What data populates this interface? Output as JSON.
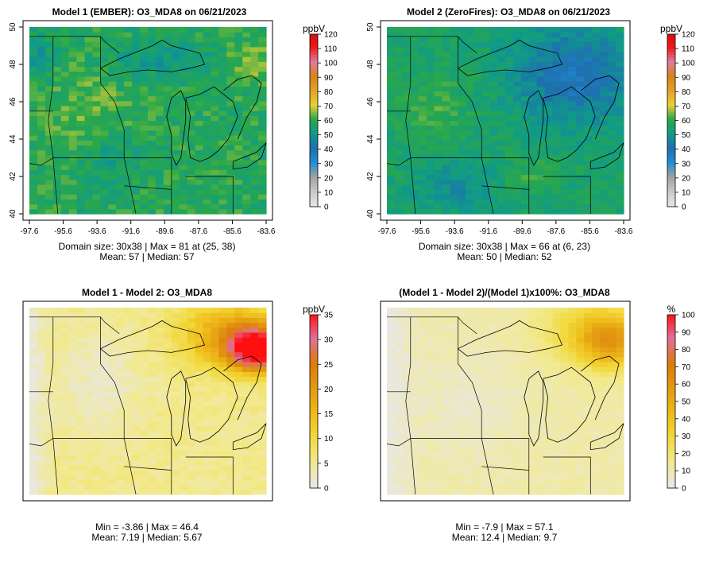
{
  "panels": [
    {
      "id": "p1",
      "title": "Model 1 (EMBER): O3_MDA8 on 06/21/2023",
      "stats_line1": "Domain size: 30x38 | Max = 81 at (25, 38)",
      "stats_line2": "Mean: 57 |  Median: 57",
      "colorbar_unit": "ppbV",
      "colorbar_ticks": [
        "0",
        "10",
        "20",
        "30",
        "40",
        "50",
        "60",
        "70",
        "80",
        "90",
        "100",
        "110",
        "120"
      ],
      "colorbar_range": [
        0,
        120
      ],
      "x_ticks": [
        "-97.6",
        "-95.6",
        "-93.6",
        "-91.6",
        "-89.6",
        "-87.6",
        "-85.6",
        "-83.6"
      ],
      "y_ticks": [
        "40",
        "42",
        "44",
        "46",
        "48",
        "50"
      ],
      "show_axes": true,
      "field": "model1"
    },
    {
      "id": "p2",
      "title": "Model 2 (ZeroFires): O3_MDA8 on 06/21/2023",
      "stats_line1": "Domain size: 30x38 | Max = 66 at (6, 23)",
      "stats_line2": "Mean: 50 |  Median: 52",
      "colorbar_unit": "ppbV",
      "colorbar_ticks": [
        "0",
        "10",
        "20",
        "30",
        "40",
        "50",
        "60",
        "70",
        "80",
        "90",
        "100",
        "110",
        "120"
      ],
      "colorbar_range": [
        0,
        120
      ],
      "x_ticks": [
        "-97.6",
        "-95.6",
        "-93.6",
        "-91.6",
        "-89.6",
        "-87.6",
        "-85.6",
        "-83.6"
      ],
      "y_ticks": [
        "40",
        "42",
        "44",
        "46",
        "48",
        "50"
      ],
      "show_axes": true,
      "field": "model2"
    },
    {
      "id": "p3",
      "title": "Model 1 - Model 2: O3_MDA8",
      "stats_line1": "Min = -3.86 | Max = 46.4",
      "stats_line2": "Mean: 7.19 |  Median: 5.67",
      "colorbar_unit": "ppbV",
      "colorbar_ticks": [
        "0",
        "5",
        "10",
        "15",
        "20",
        "25",
        "30",
        "35"
      ],
      "colorbar_range": [
        0,
        35
      ],
      "x_ticks": [],
      "y_ticks": [],
      "show_axes": false,
      "field": "diff"
    },
    {
      "id": "p4",
      "title": "(Model 1 - Model 2)/(Model 1)x100%: O3_MDA8",
      "stats_line1": "Min = -7.9 | Max = 57.1",
      "stats_line2": "Mean: 12.4 |  Median: 9.7",
      "colorbar_unit": "%",
      "colorbar_ticks": [
        "0",
        "10",
        "20",
        "30",
        "40",
        "50",
        "60",
        "70",
        "80",
        "90",
        "100"
      ],
      "colorbar_range": [
        0,
        100
      ],
      "x_ticks": [],
      "y_ticks": [],
      "show_axes": false,
      "field": "pct"
    }
  ],
  "colors": {
    "conc_scale": [
      "#e6e6e6",
      "#c8c8c8",
      "#a0a0a0",
      "#1f8fd6",
      "#1f6fb0",
      "#0f9a8a",
      "#2aa84a",
      "#e8d034",
      "#e3a126",
      "#d9831c",
      "#e07aa0",
      "#f01818",
      "#d01010"
    ],
    "diff_scale": [
      "#e8e8e8",
      "#f2e98e",
      "#f2d93c",
      "#eeb918",
      "#e29a12",
      "#de7a0c",
      "#e0709a",
      "#ff1010"
    ]
  }
}
